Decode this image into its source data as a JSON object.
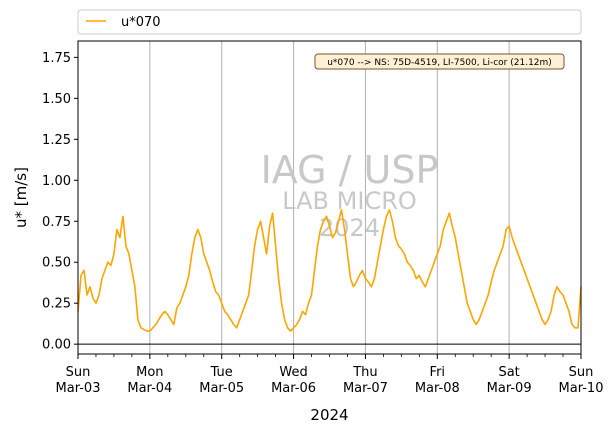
{
  "chart_data": {
    "type": "line",
    "xlabel": "2024",
    "ylabel": "u* [m/s]",
    "ylim": [
      -0.06,
      1.85
    ],
    "y_ticks": [
      "0.00",
      "0.25",
      "0.50",
      "0.75",
      "1.00",
      "1.25",
      "1.50",
      "1.75"
    ],
    "x_ticks": [
      {
        "day": "Sun",
        "date": "Mar-03"
      },
      {
        "day": "Mon",
        "date": "Mar-04"
      },
      {
        "day": "Tue",
        "date": "Mar-05"
      },
      {
        "day": "Wed",
        "date": "Mar-06"
      },
      {
        "day": "Thu",
        "date": "Mar-07"
      },
      {
        "day": "Fri",
        "date": "Mar-08"
      },
      {
        "day": "Sat",
        "date": "Mar-09"
      },
      {
        "day": "Sun",
        "date": "Mar-10"
      }
    ],
    "xlim_days": [
      0,
      7
    ],
    "grid": "vertical at major ticks",
    "legend": {
      "placement": "top, above plot",
      "entries": [
        "u*070"
      ]
    },
    "annotation": "u*070 --> NS: 75D-4519, LI-7500, Li-cor (21.12m)",
    "watermark": [
      "IAG / USP",
      "LAB MICRO",
      "2024"
    ],
    "series": [
      {
        "name": "u*070",
        "color": "#ffa500",
        "x_hours_since_Mar-03_00h": [
          0,
          1,
          2,
          3,
          4,
          5,
          6,
          7,
          8,
          9,
          10,
          11,
          12,
          13,
          14,
          15,
          16,
          17,
          18,
          19,
          20,
          21,
          22,
          23,
          24,
          25,
          26,
          27,
          28,
          29,
          30,
          31,
          32,
          33,
          34,
          35,
          36,
          37,
          38,
          39,
          40,
          41,
          42,
          43,
          44,
          45,
          46,
          47,
          48,
          49,
          50,
          51,
          52,
          53,
          54,
          55,
          56,
          57,
          58,
          59,
          60,
          61,
          62,
          63,
          64,
          65,
          66,
          67,
          68,
          69,
          70,
          71,
          72,
          73,
          74,
          75,
          76,
          77,
          78,
          79,
          80,
          81,
          82,
          83,
          84,
          85,
          86,
          87,
          88,
          89,
          90,
          91,
          92,
          93,
          94,
          95,
          96,
          97,
          98,
          99,
          100,
          101,
          102,
          103,
          104,
          105,
          106,
          107,
          108,
          109,
          110,
          111,
          112,
          113,
          114,
          115,
          116,
          117,
          118,
          119,
          120,
          121,
          122,
          123,
          124,
          125,
          126,
          127,
          128,
          129,
          130,
          131,
          132,
          133,
          134,
          135,
          136,
          137,
          138,
          139,
          140,
          141,
          142,
          143,
          144,
          145,
          146,
          147,
          148,
          149,
          150,
          151,
          152,
          153,
          154,
          155,
          156,
          157,
          158,
          159,
          160,
          161,
          162,
          163,
          164,
          165,
          166,
          167,
          168
        ],
        "values": [
          0.2,
          0.42,
          0.45,
          0.3,
          0.35,
          0.28,
          0.25,
          0.3,
          0.4,
          0.45,
          0.5,
          0.48,
          0.55,
          0.7,
          0.65,
          0.78,
          0.6,
          0.55,
          0.45,
          0.35,
          0.15,
          0.1,
          0.09,
          0.08,
          0.08,
          0.1,
          0.12,
          0.15,
          0.18,
          0.2,
          0.18,
          0.15,
          0.12,
          0.22,
          0.25,
          0.3,
          0.35,
          0.42,
          0.55,
          0.65,
          0.7,
          0.65,
          0.55,
          0.5,
          0.45,
          0.38,
          0.32,
          0.3,
          0.25,
          0.2,
          0.18,
          0.15,
          0.12,
          0.1,
          0.15,
          0.2,
          0.25,
          0.3,
          0.45,
          0.6,
          0.7,
          0.75,
          0.65,
          0.55,
          0.72,
          0.8,
          0.6,
          0.4,
          0.25,
          0.15,
          0.1,
          0.08,
          0.1,
          0.12,
          0.15,
          0.2,
          0.18,
          0.25,
          0.3,
          0.45,
          0.6,
          0.7,
          0.75,
          0.78,
          0.72,
          0.65,
          0.68,
          0.75,
          0.82,
          0.7,
          0.55,
          0.4,
          0.35,
          0.38,
          0.42,
          0.45,
          0.4,
          0.38,
          0.35,
          0.4,
          0.5,
          0.6,
          0.7,
          0.78,
          0.82,
          0.75,
          0.65,
          0.6,
          0.58,
          0.55,
          0.5,
          0.48,
          0.45,
          0.4,
          0.42,
          0.38,
          0.35,
          0.4,
          0.45,
          0.5,
          0.55,
          0.6,
          0.7,
          0.75,
          0.8,
          0.72,
          0.65,
          0.55,
          0.45,
          0.35,
          0.25,
          0.2,
          0.15,
          0.12,
          0.15,
          0.2,
          0.25,
          0.3,
          0.38,
          0.45,
          0.5,
          0.55,
          0.6,
          0.7,
          0.72,
          0.65,
          0.6,
          0.55,
          0.5,
          0.45,
          0.4,
          0.35,
          0.3,
          0.25,
          0.2,
          0.15,
          0.12,
          0.15,
          0.2,
          0.3,
          0.35,
          0.32,
          0.3,
          0.25,
          0.2,
          0.12,
          0.1,
          0.1,
          0.35
        ]
      }
    ]
  }
}
